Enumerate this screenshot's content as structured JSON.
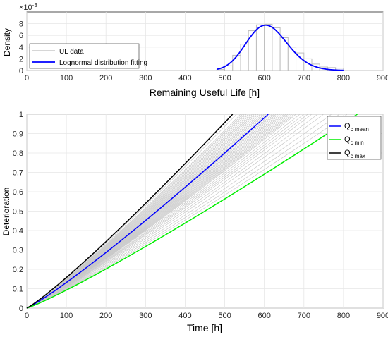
{
  "chart_data": [
    {
      "type": "bar",
      "xlabel": "Remaining Useful Life [h]",
      "ylabel": "Density",
      "y_exponent_label": "×10",
      "y_exponent_power": "-3",
      "xlim": [
        0,
        900
      ],
      "ylim": [
        0,
        10
      ],
      "grid": true,
      "legend_position": "left",
      "xticks": [
        "0",
        "100",
        "200",
        "300",
        "400",
        "500",
        "600",
        "700",
        "800",
        "900"
      ],
      "yticks": [
        "0",
        "2",
        "4",
        "6",
        "8"
      ],
      "histogram": {
        "name": "UL data",
        "bin_start": 480,
        "bin_width": 20,
        "values": [
          0.2,
          0.8,
          2.6,
          4.5,
          6.8,
          7.8,
          7.9,
          7.3,
          5.6,
          4.0,
          3.0,
          2.0,
          1.1,
          0.6,
          0.5,
          0.4
        ]
      },
      "fit": {
        "name": "Lognormal distribution fitting",
        "color": "#0000ff",
        "mean": 610,
        "sd": 52,
        "x_range": [
          480,
          800
        ]
      }
    },
    {
      "type": "line",
      "xlabel": "Time [h]",
      "ylabel": "Deterioration",
      "xlim": [
        0,
        900
      ],
      "ylim": [
        0,
        1
      ],
      "grid": true,
      "legend_position": "top-right",
      "xticks": [
        "0",
        "100",
        "200",
        "300",
        "400",
        "500",
        "600",
        "700",
        "800",
        "900"
      ],
      "yticks": [
        "0",
        "0.1",
        "0.2",
        "0.3",
        "0.4",
        "0.5",
        "0.6",
        "0.7",
        "0.8",
        "0.9",
        "1"
      ],
      "series": [
        {
          "name_main": "Q",
          "name_sub": "c mean",
          "end_time": 610,
          "color": "#0000ff"
        },
        {
          "name_main": "Q",
          "name_sub": "c min",
          "end_time": 835,
          "color": "#00ee00"
        },
        {
          "name_main": "Q",
          "name_sub": "c max",
          "end_time": 520,
          "color": "#000000"
        }
      ],
      "sample_paths": {
        "color": "#c8c8c8",
        "end_times": [
          520,
          530,
          540,
          545,
          550,
          555,
          560,
          565,
          570,
          575,
          580,
          585,
          590,
          595,
          600,
          605,
          610,
          615,
          620,
          625,
          630,
          635,
          640,
          645,
          650,
          655,
          660,
          665,
          670,
          675,
          680,
          690,
          700,
          710,
          720,
          735,
          750,
          770,
          790,
          810
        ]
      }
    }
  ]
}
